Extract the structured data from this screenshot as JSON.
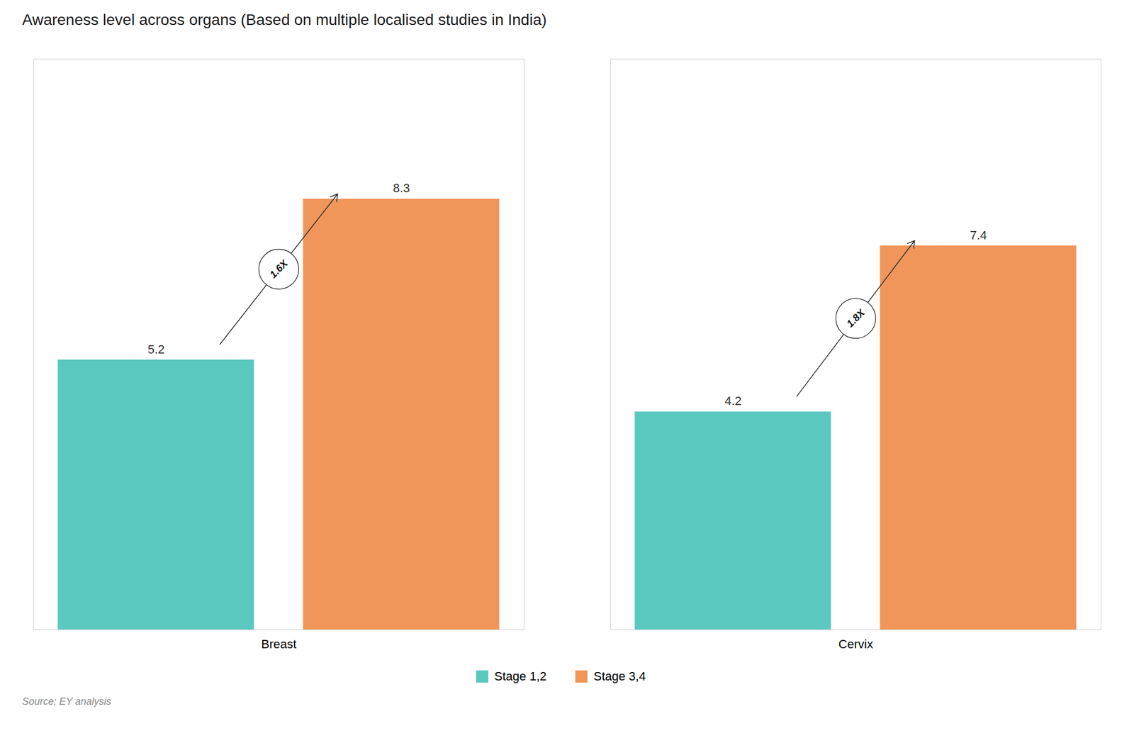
{
  "chart_data": {
    "type": "bar",
    "title": "Awareness level across organs (Based on multiple localised studies in India)",
    "categories": [
      "Breast",
      "Cervix"
    ],
    "series": [
      {
        "name": "Stage 1,2",
        "color": "#5BC8C0",
        "values": [
          5.2,
          4.2
        ]
      },
      {
        "name": "Stage 3,4",
        "color": "#F0965A",
        "values": [
          8.3,
          7.4
        ]
      }
    ],
    "ylim": [
      0,
      11
    ],
    "yticks": [],
    "tick_labels": "x",
    "data_labels": true,
    "grid": false,
    "legend": "bottom",
    "annotations": [
      {
        "category": "Breast",
        "text": "1.6X"
      },
      {
        "category": "Cervix",
        "text": "1.8X"
      }
    ],
    "source": "Source: EY analysis"
  }
}
